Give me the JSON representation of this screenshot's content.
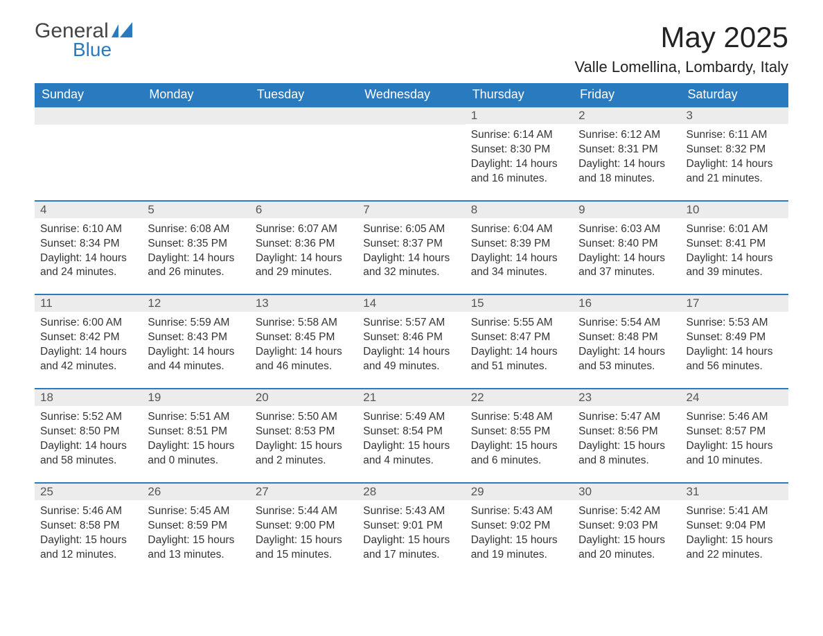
{
  "logo": {
    "text1": "General",
    "text2": "Blue"
  },
  "title": "May 2025",
  "location": "Valle Lomellina, Lombardy, Italy",
  "colors": {
    "header_bg": "#2a7ac0",
    "header_text": "#ffffff",
    "daynum_bg": "#ececec",
    "border": "#2a7ac0",
    "text": "#333333",
    "logo_blue": "#2a7ac0"
  },
  "weekdays": [
    "Sunday",
    "Monday",
    "Tuesday",
    "Wednesday",
    "Thursday",
    "Friday",
    "Saturday"
  ],
  "weeks": [
    [
      {
        "empty": true
      },
      {
        "empty": true
      },
      {
        "empty": true
      },
      {
        "empty": true
      },
      {
        "num": "1",
        "sunrise": "Sunrise: 6:14 AM",
        "sunset": "Sunset: 8:30 PM",
        "daylight": "Daylight: 14 hours and 16 minutes."
      },
      {
        "num": "2",
        "sunrise": "Sunrise: 6:12 AM",
        "sunset": "Sunset: 8:31 PM",
        "daylight": "Daylight: 14 hours and 18 minutes."
      },
      {
        "num": "3",
        "sunrise": "Sunrise: 6:11 AM",
        "sunset": "Sunset: 8:32 PM",
        "daylight": "Daylight: 14 hours and 21 minutes."
      }
    ],
    [
      {
        "num": "4",
        "sunrise": "Sunrise: 6:10 AM",
        "sunset": "Sunset: 8:34 PM",
        "daylight": "Daylight: 14 hours and 24 minutes."
      },
      {
        "num": "5",
        "sunrise": "Sunrise: 6:08 AM",
        "sunset": "Sunset: 8:35 PM",
        "daylight": "Daylight: 14 hours and 26 minutes."
      },
      {
        "num": "6",
        "sunrise": "Sunrise: 6:07 AM",
        "sunset": "Sunset: 8:36 PM",
        "daylight": "Daylight: 14 hours and 29 minutes."
      },
      {
        "num": "7",
        "sunrise": "Sunrise: 6:05 AM",
        "sunset": "Sunset: 8:37 PM",
        "daylight": "Daylight: 14 hours and 32 minutes."
      },
      {
        "num": "8",
        "sunrise": "Sunrise: 6:04 AM",
        "sunset": "Sunset: 8:39 PM",
        "daylight": "Daylight: 14 hours and 34 minutes."
      },
      {
        "num": "9",
        "sunrise": "Sunrise: 6:03 AM",
        "sunset": "Sunset: 8:40 PM",
        "daylight": "Daylight: 14 hours and 37 minutes."
      },
      {
        "num": "10",
        "sunrise": "Sunrise: 6:01 AM",
        "sunset": "Sunset: 8:41 PM",
        "daylight": "Daylight: 14 hours and 39 minutes."
      }
    ],
    [
      {
        "num": "11",
        "sunrise": "Sunrise: 6:00 AM",
        "sunset": "Sunset: 8:42 PM",
        "daylight": "Daylight: 14 hours and 42 minutes."
      },
      {
        "num": "12",
        "sunrise": "Sunrise: 5:59 AM",
        "sunset": "Sunset: 8:43 PM",
        "daylight": "Daylight: 14 hours and 44 minutes."
      },
      {
        "num": "13",
        "sunrise": "Sunrise: 5:58 AM",
        "sunset": "Sunset: 8:45 PM",
        "daylight": "Daylight: 14 hours and 46 minutes."
      },
      {
        "num": "14",
        "sunrise": "Sunrise: 5:57 AM",
        "sunset": "Sunset: 8:46 PM",
        "daylight": "Daylight: 14 hours and 49 minutes."
      },
      {
        "num": "15",
        "sunrise": "Sunrise: 5:55 AM",
        "sunset": "Sunset: 8:47 PM",
        "daylight": "Daylight: 14 hours and 51 minutes."
      },
      {
        "num": "16",
        "sunrise": "Sunrise: 5:54 AM",
        "sunset": "Sunset: 8:48 PM",
        "daylight": "Daylight: 14 hours and 53 minutes."
      },
      {
        "num": "17",
        "sunrise": "Sunrise: 5:53 AM",
        "sunset": "Sunset: 8:49 PM",
        "daylight": "Daylight: 14 hours and 56 minutes."
      }
    ],
    [
      {
        "num": "18",
        "sunrise": "Sunrise: 5:52 AM",
        "sunset": "Sunset: 8:50 PM",
        "daylight": "Daylight: 14 hours and 58 minutes."
      },
      {
        "num": "19",
        "sunrise": "Sunrise: 5:51 AM",
        "sunset": "Sunset: 8:51 PM",
        "daylight": "Daylight: 15 hours and 0 minutes."
      },
      {
        "num": "20",
        "sunrise": "Sunrise: 5:50 AM",
        "sunset": "Sunset: 8:53 PM",
        "daylight": "Daylight: 15 hours and 2 minutes."
      },
      {
        "num": "21",
        "sunrise": "Sunrise: 5:49 AM",
        "sunset": "Sunset: 8:54 PM",
        "daylight": "Daylight: 15 hours and 4 minutes."
      },
      {
        "num": "22",
        "sunrise": "Sunrise: 5:48 AM",
        "sunset": "Sunset: 8:55 PM",
        "daylight": "Daylight: 15 hours and 6 minutes."
      },
      {
        "num": "23",
        "sunrise": "Sunrise: 5:47 AM",
        "sunset": "Sunset: 8:56 PM",
        "daylight": "Daylight: 15 hours and 8 minutes."
      },
      {
        "num": "24",
        "sunrise": "Sunrise: 5:46 AM",
        "sunset": "Sunset: 8:57 PM",
        "daylight": "Daylight: 15 hours and 10 minutes."
      }
    ],
    [
      {
        "num": "25",
        "sunrise": "Sunrise: 5:46 AM",
        "sunset": "Sunset: 8:58 PM",
        "daylight": "Daylight: 15 hours and 12 minutes."
      },
      {
        "num": "26",
        "sunrise": "Sunrise: 5:45 AM",
        "sunset": "Sunset: 8:59 PM",
        "daylight": "Daylight: 15 hours and 13 minutes."
      },
      {
        "num": "27",
        "sunrise": "Sunrise: 5:44 AM",
        "sunset": "Sunset: 9:00 PM",
        "daylight": "Daylight: 15 hours and 15 minutes."
      },
      {
        "num": "28",
        "sunrise": "Sunrise: 5:43 AM",
        "sunset": "Sunset: 9:01 PM",
        "daylight": "Daylight: 15 hours and 17 minutes."
      },
      {
        "num": "29",
        "sunrise": "Sunrise: 5:43 AM",
        "sunset": "Sunset: 9:02 PM",
        "daylight": "Daylight: 15 hours and 19 minutes."
      },
      {
        "num": "30",
        "sunrise": "Sunrise: 5:42 AM",
        "sunset": "Sunset: 9:03 PM",
        "daylight": "Daylight: 15 hours and 20 minutes."
      },
      {
        "num": "31",
        "sunrise": "Sunrise: 5:41 AM",
        "sunset": "Sunset: 9:04 PM",
        "daylight": "Daylight: 15 hours and 22 minutes."
      }
    ]
  ]
}
